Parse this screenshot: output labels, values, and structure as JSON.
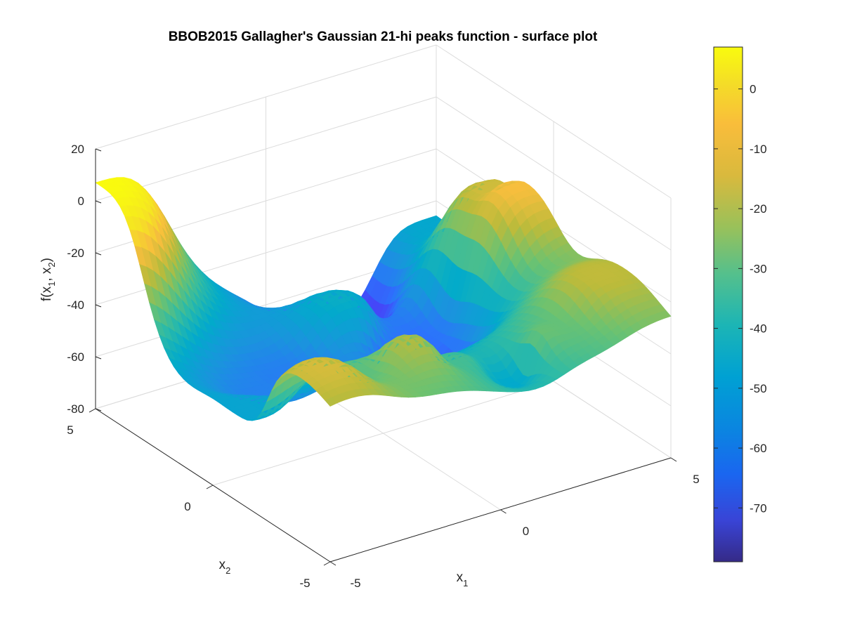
{
  "chart_data": {
    "type": "surface",
    "title": "BBOB2015 Gallagher's Gaussian 21-hi peaks function - surface plot",
    "xlabel": "x",
    "xlabel_sub": "1",
    "ylabel": "x",
    "ylabel_sub": "2",
    "zlabel": "f(x",
    "zlabel_sub1": "1",
    "zlabel_mid": ", x",
    "zlabel_sub2": "2",
    "zlabel_end": ")",
    "xlim": [
      -5,
      5
    ],
    "ylim": [
      -5,
      5
    ],
    "zlim": [
      -80,
      20
    ],
    "x_ticks": [
      "-5",
      "0",
      "5"
    ],
    "y_ticks": [
      "-5",
      "0",
      "5"
    ],
    "z_ticks": [
      "-80",
      "-60",
      "-40",
      "-20",
      "0",
      "20"
    ],
    "colorbar": {
      "range": [
        -79,
        7
      ],
      "ticks": [
        "0",
        "-10",
        "-20",
        "-30",
        "-40",
        "-50",
        "-60",
        "-70"
      ],
      "tick_values": [
        0,
        -10,
        -20,
        -30,
        -40,
        -50,
        -60,
        -70
      ]
    },
    "colormap": [
      "#3e26a8",
      "#4743f8",
      "#2c73fc",
      "#1a94dd",
      "#02aacb",
      "#2fbba5",
      "#6dc270",
      "#bbbb3b",
      "#f7be3d",
      "#f5e621",
      "#f9fb0e"
    ],
    "grid": true,
    "surface_features": [
      {
        "x": -5.0,
        "y": 5.0,
        "z": 7
      },
      {
        "x": -4.6,
        "y": -1.0,
        "z": -47
      },
      {
        "x": -4.2,
        "y": -3.6,
        "z": -15
      },
      {
        "x": -2.8,
        "y": -2.8,
        "z": -30
      },
      {
        "x": -2.8,
        "y": 0.7,
        "z": -58
      },
      {
        "x": -1.8,
        "y": 1.2,
        "z": -59
      },
      {
        "x": -1.3,
        "y": -3.1,
        "z": -20
      },
      {
        "x": -0.3,
        "y": -1.7,
        "z": -50
      },
      {
        "x": -0.1,
        "y": -3.0,
        "z": -33
      },
      {
        "x": 0.4,
        "y": 2.4,
        "z": -43
      },
      {
        "x": 1.4,
        "y": -3.6,
        "z": -45
      },
      {
        "x": 1.5,
        "y": 0.7,
        "z": -72
      },
      {
        "x": 1.7,
        "y": 4.2,
        "z": -79
      },
      {
        "x": 2.2,
        "y": 1.6,
        "z": -62
      },
      {
        "x": 2.2,
        "y": -3.6,
        "z": -28
      },
      {
        "x": 4.2,
        "y": -3.0,
        "z": -18
      },
      {
        "x": 4.6,
        "y": 1.2,
        "z": -10
      },
      {
        "x": 4.6,
        "y": 2.1,
        "z": -16
      },
      {
        "x": 5.0,
        "y": 4.2,
        "z": -46
      }
    ]
  }
}
